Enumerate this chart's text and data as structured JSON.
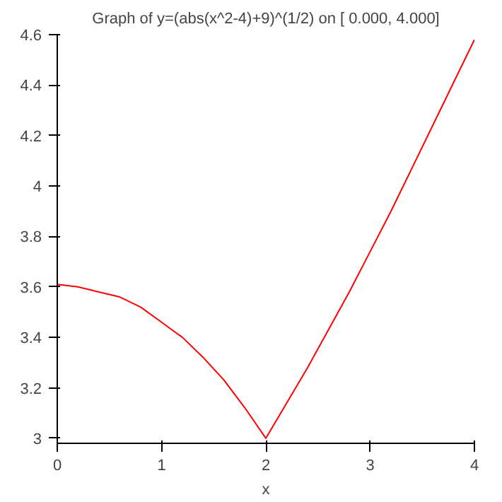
{
  "chart_data": {
    "type": "line",
    "title": "Graph of y=(abs(x^2-4)+9)^(1/2) on [ 0.000, 4.000]",
    "xlabel": "x",
    "x": [
      0,
      0.2,
      0.4,
      0.6,
      0.8,
      1,
      1.2,
      1.4,
      1.6,
      1.8,
      2,
      2.2,
      2.4,
      2.6,
      2.8,
      3,
      3.2,
      3.4,
      3.6,
      3.8,
      4
    ],
    "series": [
      {
        "color": "#ff0000",
        "values": [
          3.61,
          3.6,
          3.58,
          3.56,
          3.52,
          3.46,
          3.4,
          3.32,
          3.23,
          3.12,
          3,
          3.14,
          3.28,
          3.43,
          3.58,
          3.74,
          3.9,
          4.07,
          4.24,
          4.41,
          4.58
        ]
      }
    ],
    "xlim": [
      0,
      4
    ],
    "ylim": [
      2.98,
      4.6
    ],
    "xticks": [
      0,
      1,
      2,
      3,
      4
    ],
    "yticks": [
      3,
      3.2,
      3.4,
      3.6,
      3.8,
      4,
      4.2,
      4.4,
      4.6
    ],
    "grid": false
  }
}
